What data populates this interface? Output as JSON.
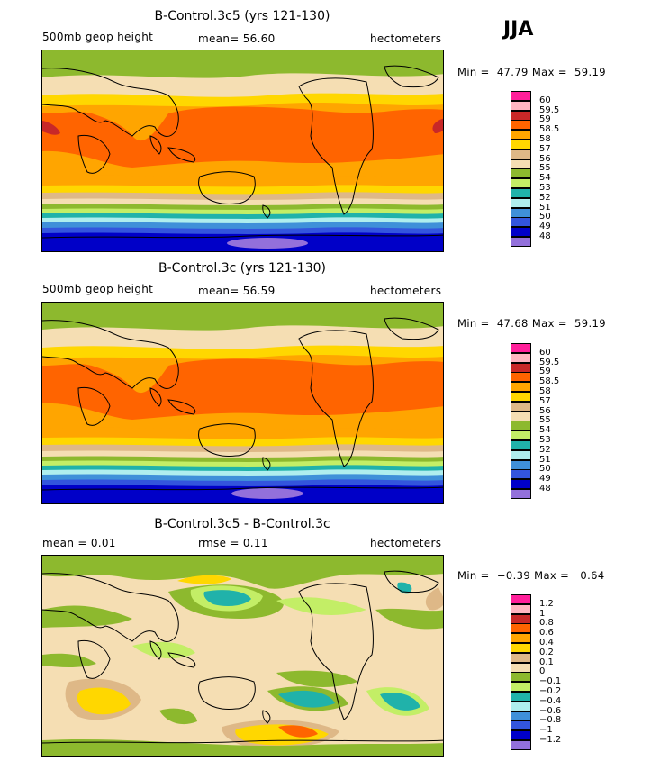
{
  "season": "JJA",
  "panels": [
    {
      "title": "B-Control.3c5 (yrs 121-130)",
      "left_text": "500mb geop height",
      "mid_text": "mean=  56.60",
      "right_text": "hectometers",
      "min_label": "Min =",
      "min_value": "47.79",
      "max_label": "Max =",
      "max_value": "59.19",
      "kind": "abs"
    },
    {
      "title": "B-Control.3c (yrs 121-130)",
      "left_text": "500mb geop height",
      "mid_text": "mean=  56.59",
      "right_text": "hectometers",
      "min_label": "Min =",
      "min_value": "47.68",
      "max_label": "Max =",
      "max_value": "59.19",
      "kind": "abs"
    },
    {
      "title": "B-Control.3c5 - B-Control.3c",
      "left_text": "mean =    0.01",
      "mid_text": "rmse =    0.11",
      "right_text": "hectometers",
      "min_label": "Min =",
      "min_value": "−0.39",
      "max_label": "Max =",
      "max_value": "0.64",
      "kind": "diff"
    }
  ],
  "abs_colorbar": {
    "colors": [
      "#ff1f9a",
      "#ffb6c1",
      "#c82828",
      "#ff6400",
      "#ffa500",
      "#ffd700",
      "#deb887",
      "#f5deb3",
      "#8db92e",
      "#c3ee66",
      "#20b2aa",
      "#afeeee",
      "#3f90d9",
      "#3355dd",
      "#0000c8",
      "#9370db"
    ],
    "labels": [
      "60",
      "59.5",
      "59",
      "58.5",
      "58",
      "57",
      "56",
      "55",
      "54",
      "53",
      "52",
      "51",
      "50",
      "49",
      "48"
    ]
  },
  "diff_colorbar": {
    "colors": [
      "#ff1f9a",
      "#ffb6c1",
      "#c82828",
      "#ff6400",
      "#ffa500",
      "#ffd700",
      "#deb887",
      "#f5deb3",
      "#8db92e",
      "#c3ee66",
      "#20b2aa",
      "#afeeee",
      "#3f90d9",
      "#3355dd",
      "#0000c8",
      "#9370db"
    ],
    "labels": [
      "1.2",
      "1",
      "0.8",
      "0.6",
      "0.4",
      "0.2",
      "0.1",
      "0",
      "−0.1",
      "−0.2",
      "−0.4",
      "−0.6",
      "−0.8",
      "−1",
      "−1.2"
    ]
  }
}
